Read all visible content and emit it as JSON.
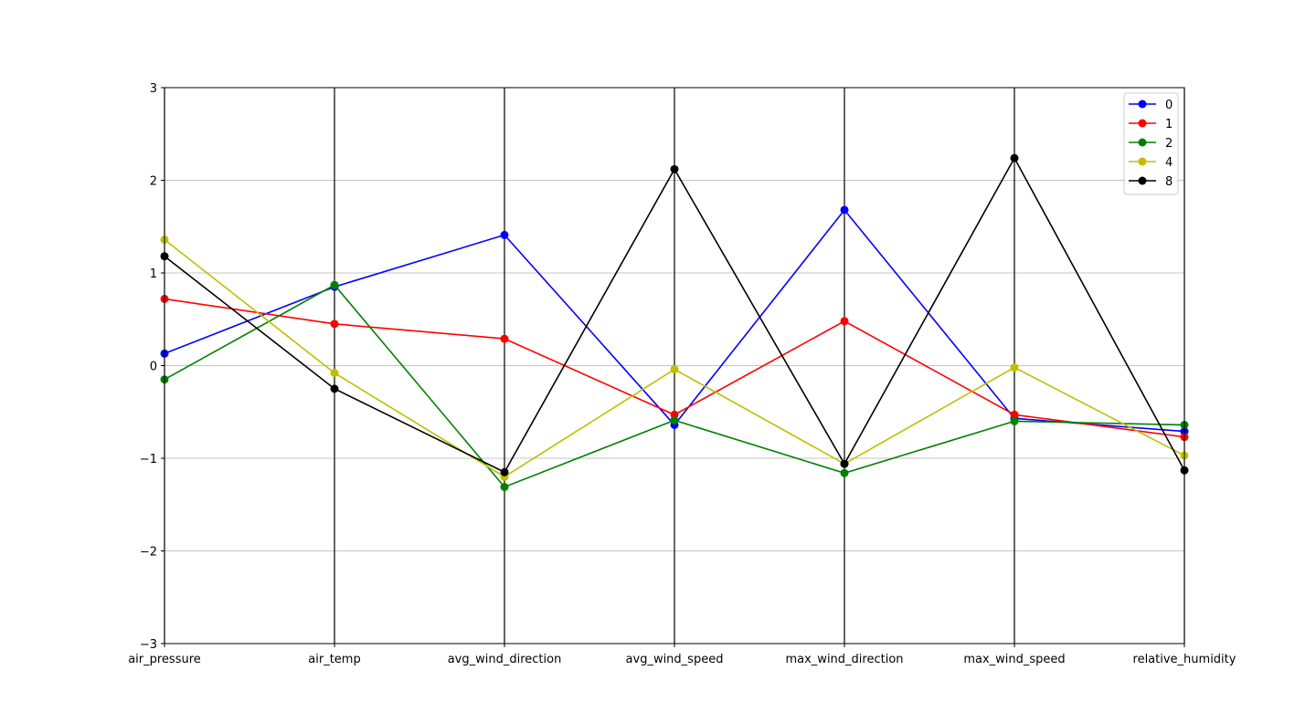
{
  "chart_data": {
    "type": "line",
    "subtype": "parallel-coordinates",
    "categories": [
      "air_pressure",
      "air_temp",
      "avg_wind_direction",
      "avg_wind_speed",
      "max_wind_direction",
      "max_wind_speed",
      "relative_humidity"
    ],
    "ylim": [
      -3,
      3
    ],
    "yticks": [
      -3,
      -2,
      -1,
      0,
      1,
      2,
      3
    ],
    "ytick_labels": [
      "−3",
      "−2",
      "−1",
      "0",
      "1",
      "2",
      "3"
    ],
    "grid": true,
    "legend_position": "top-right",
    "series": [
      {
        "name": "0",
        "color": "#0000ff",
        "values": [
          0.13,
          0.85,
          1.41,
          -0.64,
          1.68,
          -0.57,
          -0.71
        ]
      },
      {
        "name": "1",
        "color": "#ff0000",
        "values": [
          0.72,
          0.45,
          0.29,
          -0.53,
          0.48,
          -0.53,
          -0.77
        ]
      },
      {
        "name": "2",
        "color": "#008000",
        "values": [
          -0.15,
          0.87,
          -1.31,
          -0.59,
          -1.16,
          -0.6,
          -0.64
        ]
      },
      {
        "name": "4",
        "color": "#bfbf00",
        "values": [
          1.36,
          -0.08,
          -1.2,
          -0.04,
          -1.06,
          -0.02,
          -0.97
        ]
      },
      {
        "name": "8",
        "color": "#000000",
        "values": [
          1.18,
          -0.25,
          -1.15,
          2.12,
          -1.06,
          2.24,
          -1.13
        ]
      }
    ]
  }
}
